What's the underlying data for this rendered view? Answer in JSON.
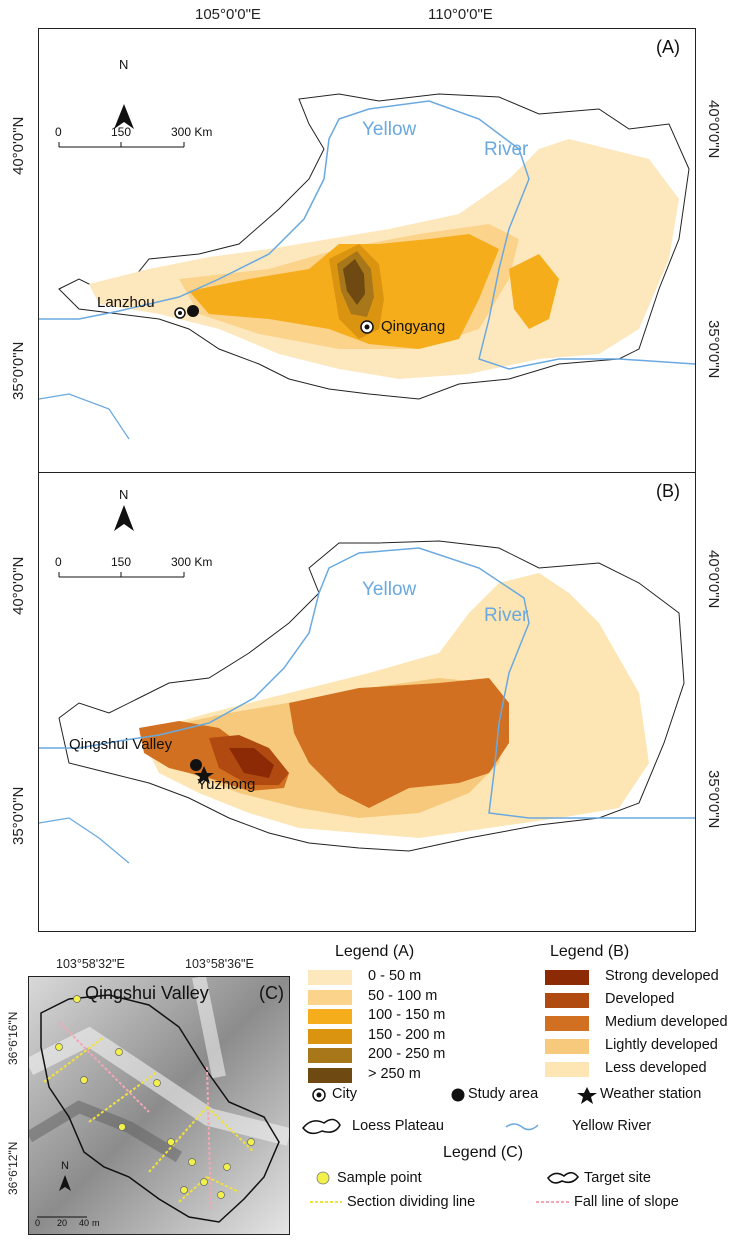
{
  "top_coords": {
    "lon1": "105°0'0\"E",
    "lon2": "110°0'0\"E"
  },
  "panel_a": {
    "label": "(A)",
    "lat_upper": "40°0'0\"N",
    "lat_lower": "35°0'0\"N",
    "north": "N",
    "scalebar": [
      "0",
      "150",
      "300 Km"
    ],
    "river_label_1": "Yellow",
    "river_label_2": "River",
    "city_1": "Lanzhou",
    "city_2": "Qingyang"
  },
  "panel_b": {
    "label": "(B)",
    "lat_upper": "40°0'0\"N",
    "lat_lower": "35°0'0\"N",
    "north": "N",
    "scalebar": [
      "0",
      "150",
      "300 Km"
    ],
    "river_label_1": "Yellow",
    "river_label_2": "River",
    "site_1": "Qingshui Valley",
    "site_2": "Yuzhong"
  },
  "panel_c": {
    "label": "(C)",
    "title": "Qingshui Valley",
    "lon1": "103°58'32\"E",
    "lon2": "103°58'36\"E",
    "lat1": "36°6'16\"N",
    "lat2": "36°6'12\"N",
    "north": "N",
    "scalebar": [
      "0",
      "20",
      "40",
      "m"
    ]
  },
  "legend_a": {
    "title": "Legend (A)",
    "items": [
      {
        "label": "0 - 50 m",
        "color": "#fde8bd"
      },
      {
        "label": "50 - 100 m",
        "color": "#fbd38a"
      },
      {
        "label": "100 - 150 m",
        "color": "#f6ad1c"
      },
      {
        "label": "150 - 200 m",
        "color": "#db9410"
      },
      {
        "label": "200 - 250 m",
        "color": "#a8771a"
      },
      {
        "label": "> 250 m",
        "color": "#6e4a12"
      }
    ]
  },
  "legend_b": {
    "title": "Legend (B)",
    "items": [
      {
        "label": "Strong developed",
        "color": "#8c2a05"
      },
      {
        "label": "Developed",
        "color": "#b04a10"
      },
      {
        "label": "Medium developed",
        "color": "#d07020"
      },
      {
        "label": "Lightly developed",
        "color": "#f6c97c"
      },
      {
        "label": "Less developed",
        "color": "#fde6b4"
      }
    ]
  },
  "legend_shared": {
    "city": "City",
    "study_area": "Study area",
    "weather_station": "Weather station",
    "loess_plateau": "Loess Plateau",
    "yellow_river": "Yellow River"
  },
  "legend_c": {
    "title": "Legend (C)",
    "sample_point": "Sample point",
    "target_site": "Target site",
    "section_line": "Section dividing line",
    "fall_line": "Fall line of slope"
  },
  "colors": {
    "river": "#6aa9e0",
    "sample": "#f2f04a",
    "section_line": "#f0e23a",
    "fall_line": "#f3a7b5"
  }
}
